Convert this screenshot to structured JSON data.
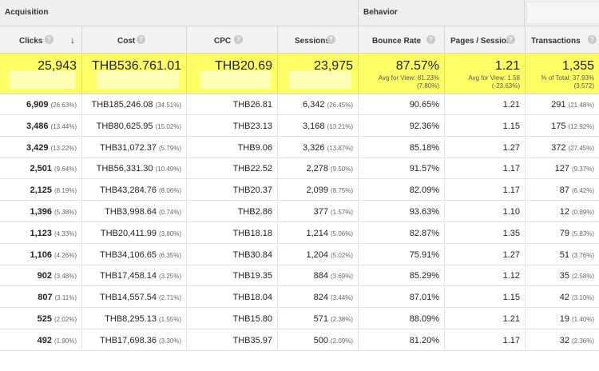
{
  "groups": {
    "acquisition": "Acquisition",
    "behavior": "Behavior"
  },
  "columns": {
    "clicks": "Clicks",
    "cost": "Cost",
    "cpc": "CPC",
    "sessions": "Sessions",
    "bounce_rate": "Bounce Rate",
    "pages_session": "Pages / Session",
    "transactions": "Transactions"
  },
  "help_glyph": "?",
  "sort_glyph": "↓",
  "totals": {
    "clicks": "25,943",
    "cost": "THB536.761.01",
    "cpc": "THB20.69",
    "sessions": "23,975",
    "bounce_rate": "87.57%",
    "bounce_rate_sub1": "Avg for View: 81.23%",
    "bounce_rate_sub2": "(7.80%)",
    "pages_session": "1.21",
    "pages_session_sub1": "Avg for View: 1.58",
    "pages_session_sub2": "(-23.63%)",
    "transactions": "1,355",
    "transactions_sub1": "% of Total: 37.93%",
    "transactions_sub2": "(3,572)"
  },
  "rows": [
    {
      "clicks": "6,909",
      "clicks_pct": "(26.63%)",
      "cost": "THB185,246.08",
      "cost_pct": "(34.51%)",
      "cpc": "THB26.81",
      "sessions": "6,342",
      "sessions_pct": "(26.45%)",
      "bounce": "90.65%",
      "pages": "1.21",
      "trans": "291",
      "trans_pct": "(21.48%)"
    },
    {
      "clicks": "3,486",
      "clicks_pct": "(13.44%)",
      "cost": "THB80,625.95",
      "cost_pct": "(15.02%)",
      "cpc": "THB23.13",
      "sessions": "3,168",
      "sessions_pct": "(13.21%)",
      "bounce": "92.36%",
      "pages": "1.15",
      "trans": "175",
      "trans_pct": "(12.92%)"
    },
    {
      "clicks": "3,429",
      "clicks_pct": "(13.22%)",
      "cost": "THB31,072.37",
      "cost_pct": "(5.79%)",
      "cpc": "THB9.06",
      "sessions": "3,326",
      "sessions_pct": "(13.87%)",
      "bounce": "85.18%",
      "pages": "1.27",
      "trans": "372",
      "trans_pct": "(27.45%)"
    },
    {
      "clicks": "2,501",
      "clicks_pct": "(9.64%)",
      "cost": "THB56,331.30",
      "cost_pct": "(10.49%)",
      "cpc": "THB22.52",
      "sessions": "2,278",
      "sessions_pct": "(9.50%)",
      "bounce": "91.57%",
      "pages": "1.17",
      "trans": "127",
      "trans_pct": "(9.37%)"
    },
    {
      "clicks": "2,125",
      "clicks_pct": "(8.19%)",
      "cost": "THB43,284.76",
      "cost_pct": "(8.06%)",
      "cpc": "THB20.37",
      "sessions": "2,099",
      "sessions_pct": "(8.75%)",
      "bounce": "82.09%",
      "pages": "1.17",
      "trans": "87",
      "trans_pct": "(6.42%)"
    },
    {
      "clicks": "1,396",
      "clicks_pct": "(5.38%)",
      "cost": "THB3,998.64",
      "cost_pct": "(0.74%)",
      "cpc": "THB2.86",
      "sessions": "377",
      "sessions_pct": "(1.57%)",
      "bounce": "93.63%",
      "pages": "1.10",
      "trans": "12",
      "trans_pct": "(0.89%)"
    },
    {
      "clicks": "1,123",
      "clicks_pct": "(4.33%)",
      "cost": "THB20,411.99",
      "cost_pct": "(3.80%)",
      "cpc": "THB18.18",
      "sessions": "1,214",
      "sessions_pct": "(5.06%)",
      "bounce": "82.87%",
      "pages": "1.35",
      "trans": "79",
      "trans_pct": "(5.83%)"
    },
    {
      "clicks": "1,106",
      "clicks_pct": "(4.26%)",
      "cost": "THB34,106.65",
      "cost_pct": "(6.35%)",
      "cpc": "THB30.84",
      "sessions": "1,204",
      "sessions_pct": "(5.02%)",
      "bounce": "75.91%",
      "pages": "1.27",
      "trans": "51",
      "trans_pct": "(3.76%)"
    },
    {
      "clicks": "902",
      "clicks_pct": "(3.48%)",
      "cost": "THB17,458.14",
      "cost_pct": "(3.25%)",
      "cpc": "THB19.35",
      "sessions": "884",
      "sessions_pct": "(3.69%)",
      "bounce": "85.29%",
      "pages": "1.12",
      "trans": "35",
      "trans_pct": "(2.58%)"
    },
    {
      "clicks": "807",
      "clicks_pct": "(3.11%)",
      "cost": "THB14,557.54",
      "cost_pct": "(2.71%)",
      "cpc": "THB18.04",
      "sessions": "824",
      "sessions_pct": "(3.44%)",
      "bounce": "87.01%",
      "pages": "1.15",
      "trans": "42",
      "trans_pct": "(3.10%)"
    },
    {
      "clicks": "525",
      "clicks_pct": "(2.02%)",
      "cost": "THB8,295.13",
      "cost_pct": "(1.55%)",
      "cpc": "THB15.80",
      "sessions": "571",
      "sessions_pct": "(2.38%)",
      "bounce": "88.09%",
      "pages": "1.21",
      "trans": "19",
      "trans_pct": "(1.40%)"
    },
    {
      "clicks": "492",
      "clicks_pct": "(1.90%)",
      "cost": "THB17,698.36",
      "cost_pct": "(3.30%)",
      "cpc": "THB35.97",
      "sessions": "500",
      "sessions_pct": "(2.09%)",
      "bounce": "81.20%",
      "pages": "1.17",
      "trans": "32",
      "trans_pct": "(2.36%)"
    }
  ]
}
